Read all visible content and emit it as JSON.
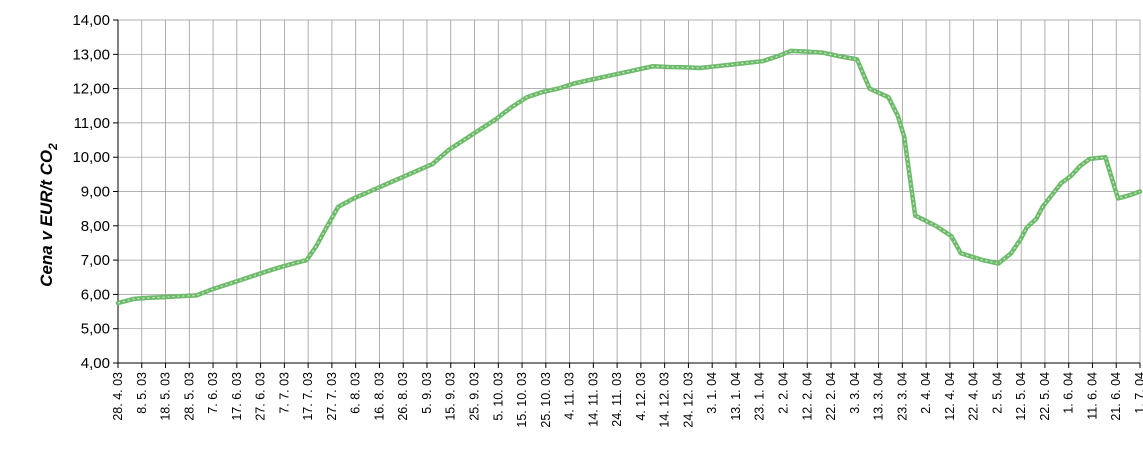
{
  "chart_data": {
    "type": "line",
    "title": "",
    "xlabel": "",
    "ylabel": "Cena v EUR/t CO",
    "ylabel_subscript": "2",
    "ylim": [
      4,
      14
    ],
    "y_ticks": [
      "4,00",
      "5,00",
      "6,00",
      "7,00",
      "8,00",
      "9,00",
      "10,00",
      "11,00",
      "12,00",
      "13,00",
      "14,00"
    ],
    "x_categories": [
      "28. 4. 03",
      "8. 5. 03",
      "18. 5. 03",
      "28. 5. 03",
      "7. 6. 03",
      "17. 6. 03",
      "27. 6. 03",
      "7. 7. 03",
      "17. 7. 03",
      "27. 7. 03",
      "6. 8. 03",
      "16. 8. 03",
      "26. 8. 03",
      "5. 9. 03",
      "15. 9. 03",
      "25. 9. 03",
      "5. 10. 03",
      "15. 10. 03",
      "25. 10. 03",
      "4. 11. 03",
      "14. 11. 03",
      "24. 11. 03",
      "4. 12. 03",
      "14. 12. 03",
      "24. 12. 03",
      "3. 1. 04",
      "13. 1. 04",
      "23. 1. 04",
      "2. 2. 04",
      "12. 2. 04",
      "22. 2. 04",
      "3. 3. 04",
      "13. 3. 04",
      "23. 3. 04",
      "2. 4. 04",
      "12. 4. 04",
      "22. 4. 04",
      "2. 5. 04",
      "12. 5. 04",
      "22. 5. 04",
      "1. 6. 04",
      "11. 6. 04",
      "21. 6. 04",
      "1. 7. 04"
    ],
    "grid": true,
    "series": [
      {
        "name": "",
        "color": "#6dba6a",
        "points": [
          [
            0,
            5.75
          ],
          [
            0.5,
            5.87
          ],
          [
            1,
            5.9
          ],
          [
            1.5,
            5.92
          ],
          [
            2,
            5.95
          ],
          [
            2.5,
            5.97
          ],
          [
            3,
            6.15
          ],
          [
            3.5,
            6.3
          ],
          [
            4,
            6.45
          ],
          [
            4.5,
            6.6
          ],
          [
            5,
            6.75
          ],
          [
            5.5,
            6.88
          ],
          [
            6,
            7.0
          ],
          [
            6.3,
            7.4
          ],
          [
            6.6,
            7.9
          ],
          [
            7,
            8.55
          ],
          [
            7.5,
            8.8
          ],
          [
            8,
            9.0
          ],
          [
            8.5,
            9.2
          ],
          [
            9,
            9.4
          ],
          [
            9.5,
            9.6
          ],
          [
            10,
            9.8
          ],
          [
            10.5,
            10.2
          ],
          [
            11,
            10.5
          ],
          [
            11.5,
            10.8
          ],
          [
            12,
            11.1
          ],
          [
            12.5,
            11.45
          ],
          [
            13,
            11.75
          ],
          [
            13.5,
            11.9
          ],
          [
            14,
            12.0
          ],
          [
            14.5,
            12.15
          ],
          [
            15,
            12.25
          ],
          [
            15.5,
            12.35
          ],
          [
            16,
            12.45
          ],
          [
            16.5,
            12.55
          ],
          [
            17,
            12.65
          ],
          [
            17.5,
            12.63
          ],
          [
            18,
            12.62
          ],
          [
            18.5,
            12.6
          ],
          [
            19,
            12.65
          ],
          [
            19.5,
            12.7
          ],
          [
            20,
            12.75
          ],
          [
            20.5,
            12.8
          ],
          [
            21,
            12.95
          ],
          [
            21.4,
            13.1
          ],
          [
            21.9,
            13.08
          ],
          [
            22.4,
            13.05
          ],
          [
            22.9,
            12.95
          ],
          [
            23.5,
            12.85
          ],
          [
            23.9,
            12.0
          ],
          [
            24.5,
            11.75
          ],
          [
            24.8,
            11.2
          ],
          [
            25.0,
            10.6
          ],
          [
            25.2,
            9.3
          ],
          [
            25.35,
            8.3
          ],
          [
            26,
            8.0
          ],
          [
            26.5,
            7.7
          ],
          [
            26.8,
            7.2
          ],
          [
            27.5,
            7.0
          ],
          [
            28,
            6.9
          ],
          [
            28.4,
            7.2
          ],
          [
            28.7,
            7.6
          ],
          [
            28.9,
            7.95
          ],
          [
            29.2,
            8.2
          ],
          [
            29.4,
            8.55
          ],
          [
            29.7,
            8.9
          ],
          [
            30,
            9.25
          ],
          [
            30.3,
            9.45
          ],
          [
            30.6,
            9.75
          ],
          [
            30.9,
            9.95
          ],
          [
            31.4,
            10.0
          ],
          [
            31.8,
            8.8
          ],
          [
            32.2,
            8.9
          ],
          [
            32.5,
            9.0
          ]
        ]
      }
    ]
  }
}
